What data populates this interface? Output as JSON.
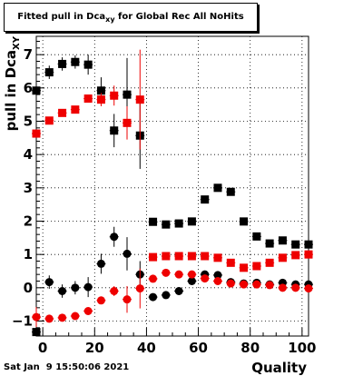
{
  "title_prefix": "Fitted pull in Dca",
  "title_sub": "xy",
  "title_suffix": " for Global Rec All NoHits",
  "timestamp": "Sat Jan  9 15:50:06 2021",
  "chart_data": {
    "type": "scatter",
    "xlabel": "Quality",
    "ylabel_main": "pull in Dca",
    "ylabel_sub": "XY",
    "xlim": [
      -2.5,
      102.5
    ],
    "ylim": [
      -1.45,
      7.55
    ],
    "xticks": [
      0,
      20,
      40,
      60,
      80,
      100
    ],
    "yticks": [
      -1,
      0,
      1,
      2,
      3,
      4,
      5,
      6,
      7
    ],
    "grid": true,
    "series": [
      {
        "marker": "square",
        "color": "#000000",
        "points": [
          {
            "x": -2.5,
            "y": -1.33,
            "err": 0.1
          },
          {
            "x": -2.5,
            "y": 5.92,
            "err": 0.2
          },
          {
            "x": 2.5,
            "y": 6.47,
            "err": 0.2
          },
          {
            "x": 7.5,
            "y": 6.72,
            "err": 0.2
          },
          {
            "x": 12.5,
            "y": 6.78,
            "err": 0.2
          },
          {
            "x": 17.5,
            "y": 6.7,
            "err": 0.3
          },
          {
            "x": 22.5,
            "y": 5.92,
            "err": 0.4
          },
          {
            "x": 27.5,
            "y": 4.72,
            "err": 0.5
          },
          {
            "x": 32.5,
            "y": 5.8,
            "err": 1.1
          },
          {
            "x": 37.5,
            "y": 4.57,
            "err": 1.0
          },
          {
            "x": 42.5,
            "y": 1.98,
            "err": 0.1
          },
          {
            "x": 47.5,
            "y": 1.9,
            "err": 0.1
          },
          {
            "x": 52.5,
            "y": 1.93,
            "err": 0.1
          },
          {
            "x": 57.5,
            "y": 1.99,
            "err": 0.1
          },
          {
            "x": 62.5,
            "y": 2.65,
            "err": 0.1
          },
          {
            "x": 67.5,
            "y": 3.0,
            "err": 0.1
          },
          {
            "x": 72.5,
            "y": 2.88,
            "err": 0.1
          },
          {
            "x": 77.5,
            "y": 1.99,
            "err": 0.05
          },
          {
            "x": 82.5,
            "y": 1.54,
            "err": 0.05
          },
          {
            "x": 87.5,
            "y": 1.33,
            "err": 0.05
          },
          {
            "x": 92.5,
            "y": 1.42,
            "err": 0.05
          },
          {
            "x": 97.5,
            "y": 1.3,
            "err": 0.05
          },
          {
            "x": 102.5,
            "y": 1.3,
            "err": 0.05
          }
        ]
      },
      {
        "marker": "square",
        "color": "#ee0000",
        "points": [
          {
            "x": -2.5,
            "y": 4.63,
            "err": 0.08
          },
          {
            "x": 2.5,
            "y": 5.02,
            "err": 0.08
          },
          {
            "x": 7.5,
            "y": 5.25,
            "err": 0.08
          },
          {
            "x": 12.5,
            "y": 5.35,
            "err": 0.08
          },
          {
            "x": 17.5,
            "y": 5.68,
            "err": 0.1
          },
          {
            "x": 22.5,
            "y": 5.65,
            "err": 0.2
          },
          {
            "x": 27.5,
            "y": 5.77,
            "err": 0.3
          },
          {
            "x": 32.5,
            "y": 4.95,
            "err": 0.5
          },
          {
            "x": 37.5,
            "y": 5.65,
            "err": 1.5
          },
          {
            "x": 42.5,
            "y": 0.92,
            "err": 0.05
          },
          {
            "x": 47.5,
            "y": 0.95,
            "err": 0.05
          },
          {
            "x": 52.5,
            "y": 0.95,
            "err": 0.05
          },
          {
            "x": 57.5,
            "y": 0.95,
            "err": 0.05
          },
          {
            "x": 62.5,
            "y": 0.95,
            "err": 0.05
          },
          {
            "x": 67.5,
            "y": 0.9,
            "err": 0.05
          },
          {
            "x": 72.5,
            "y": 0.75,
            "err": 0.05
          },
          {
            "x": 77.5,
            "y": 0.6,
            "err": 0.05
          },
          {
            "x": 82.5,
            "y": 0.65,
            "err": 0.05
          },
          {
            "x": 87.5,
            "y": 0.75,
            "err": 0.05
          },
          {
            "x": 92.5,
            "y": 0.9,
            "err": 0.05
          },
          {
            "x": 97.5,
            "y": 0.98,
            "err": 0.05
          },
          {
            "x": 102.5,
            "y": 1.0,
            "err": 0.05
          }
        ]
      },
      {
        "marker": "circle",
        "color": "#000000",
        "points": [
          {
            "x": 2.5,
            "y": 0.17,
            "err": 0.2
          },
          {
            "x": 7.5,
            "y": -0.1,
            "err": 0.2
          },
          {
            "x": 12.5,
            "y": 0.0,
            "err": 0.2
          },
          {
            "x": 17.5,
            "y": 0.02,
            "err": 0.3
          },
          {
            "x": 22.5,
            "y": 0.72,
            "err": 0.3
          },
          {
            "x": 27.5,
            "y": 1.53,
            "err": 0.3
          },
          {
            "x": 32.5,
            "y": 1.02,
            "err": 0.5
          },
          {
            "x": 37.5,
            "y": 0.4,
            "err": 0.4
          },
          {
            "x": 42.5,
            "y": -0.28,
            "err": 0.1
          },
          {
            "x": 47.5,
            "y": -0.22,
            "err": 0.1
          },
          {
            "x": 52.5,
            "y": -0.1,
            "err": 0.1
          },
          {
            "x": 57.5,
            "y": 0.2,
            "err": 0.1
          },
          {
            "x": 62.5,
            "y": 0.4,
            "err": 0.1
          },
          {
            "x": 67.5,
            "y": 0.38,
            "err": 0.1
          },
          {
            "x": 72.5,
            "y": 0.17,
            "err": 0.05
          },
          {
            "x": 77.5,
            "y": 0.13,
            "err": 0.05
          },
          {
            "x": 82.5,
            "y": 0.15,
            "err": 0.05
          },
          {
            "x": 87.5,
            "y": 0.1,
            "err": 0.05
          },
          {
            "x": 92.5,
            "y": 0.15,
            "err": 0.05
          },
          {
            "x": 97.5,
            "y": 0.1,
            "err": 0.05
          },
          {
            "x": 102.5,
            "y": 0.1,
            "err": 0.05
          }
        ]
      },
      {
        "marker": "circle",
        "color": "#ee0000",
        "points": [
          {
            "x": -2.5,
            "y": -0.88,
            "err": 0.3
          },
          {
            "x": 2.5,
            "y": -0.93,
            "err": 0.05
          },
          {
            "x": 7.5,
            "y": -0.9,
            "err": 0.05
          },
          {
            "x": 12.5,
            "y": -0.85,
            "err": 0.05
          },
          {
            "x": 17.5,
            "y": -0.7,
            "err": 0.1
          },
          {
            "x": 22.5,
            "y": -0.38,
            "err": 0.1
          },
          {
            "x": 27.5,
            "y": -0.1,
            "err": 0.15
          },
          {
            "x": 32.5,
            "y": -0.35,
            "err": 0.4
          },
          {
            "x": 37.5,
            "y": -0.02,
            "err": 0.6
          },
          {
            "x": 42.5,
            "y": 0.27,
            "err": 0.05
          },
          {
            "x": 47.5,
            "y": 0.45,
            "err": 0.05
          },
          {
            "x": 52.5,
            "y": 0.4,
            "err": 0.05
          },
          {
            "x": 57.5,
            "y": 0.4,
            "err": 0.05
          },
          {
            "x": 62.5,
            "y": 0.28,
            "err": 0.05
          },
          {
            "x": 67.5,
            "y": 0.2,
            "err": 0.05
          },
          {
            "x": 72.5,
            "y": 0.13,
            "err": 0.05
          },
          {
            "x": 77.5,
            "y": 0.1,
            "err": 0.05
          },
          {
            "x": 82.5,
            "y": 0.1,
            "err": 0.05
          },
          {
            "x": 87.5,
            "y": 0.08,
            "err": 0.05
          },
          {
            "x": 92.5,
            "y": 0.0,
            "err": 0.05
          },
          {
            "x": 97.5,
            "y": 0.0,
            "err": 0.05
          },
          {
            "x": 102.5,
            "y": -0.02,
            "err": 0.05
          }
        ]
      }
    ]
  }
}
